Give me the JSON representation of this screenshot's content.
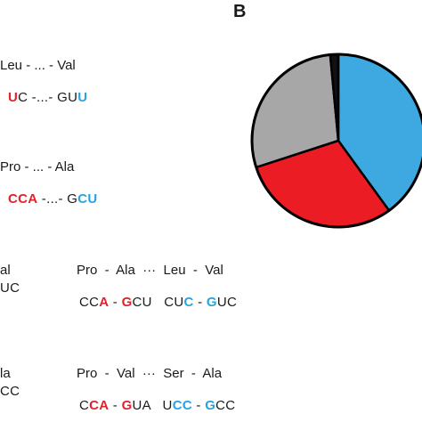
{
  "panel_label": "B",
  "rows": [
    {
      "aa": "Leu - ... - Val",
      "seq": [
        [
          "",
          ""
        ],
        [
          "U",
          "red"
        ],
        [
          "C -...- GU",
          ""
        ],
        [
          "U",
          "blue"
        ]
      ]
    },
    {
      "aa": "Pro - ... - Ala",
      "seq": [
        [
          "C",
          "red"
        ],
        [
          "CA",
          "red"
        ],
        [
          " -...- G",
          ""
        ],
        [
          "CU",
          "blue"
        ]
      ]
    },
    {
      "aa_left": "al",
      "seq_left": "UC",
      "aa_mid": "Pro  -  Ala  ···  Leu  -  Val",
      "seq_mid": [
        [
          "CC",
          ""
        ],
        [
          "A",
          "red"
        ],
        [
          " - ",
          ""
        ],
        [
          "G",
          "red"
        ],
        [
          "CU   CU",
          ""
        ],
        [
          "C",
          "blue"
        ],
        [
          " - ",
          ""
        ],
        [
          "G",
          "blue"
        ],
        [
          "UC",
          ""
        ]
      ]
    },
    {
      "aa_left": "la",
      "seq_left": "CC",
      "aa_mid": "Pro  -  Val  ···  Ser  -  Ala",
      "seq_mid": [
        [
          "C",
          ""
        ],
        [
          "CA",
          "red"
        ],
        [
          " - ",
          ""
        ],
        [
          "G",
          "red"
        ],
        [
          "UA   U",
          ""
        ],
        [
          "CC",
          "blue"
        ],
        [
          " - ",
          ""
        ],
        [
          "G",
          "blue"
        ],
        [
          "CC",
          ""
        ]
      ]
    }
  ],
  "chart_data": {
    "type": "pie",
    "slices": [
      {
        "value": 40,
        "color": "#3ea8e0"
      },
      {
        "value": 30,
        "color": "#ec1c24"
      },
      {
        "value": 28.5,
        "color": "#a7a7a7"
      },
      {
        "value": 1.5,
        "color": "#111111"
      }
    ],
    "start_angle_deg": 0,
    "outline_color": "#000000"
  }
}
